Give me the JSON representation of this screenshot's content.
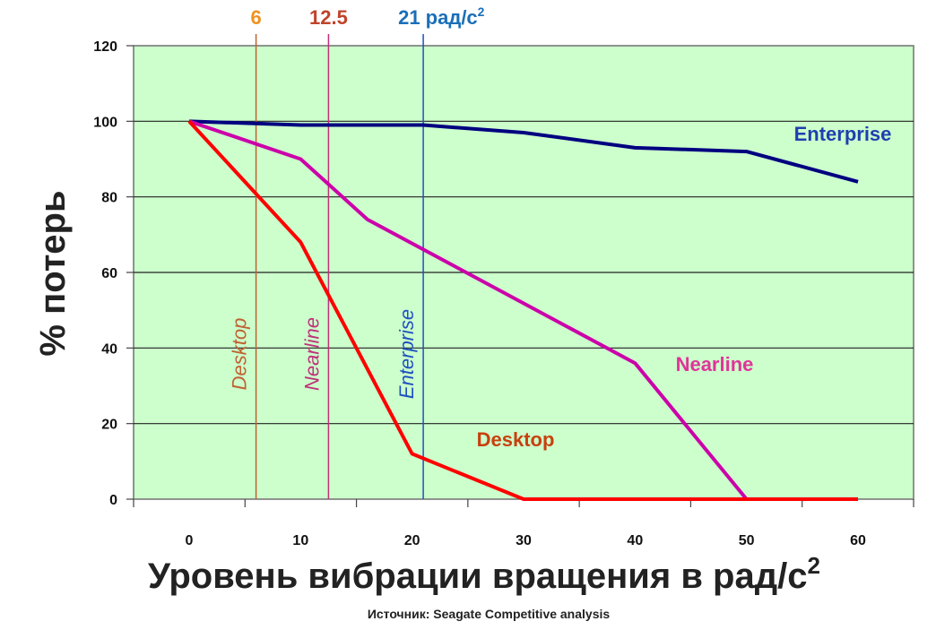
{
  "chart_data": {
    "type": "line",
    "title": "",
    "xlabel": "Уровень вибрации вращения в рад/с",
    "xlabel_superscript": "2",
    "ylabel": "% потерь",
    "source": "Источник: Seagate Competitive analysis",
    "ylim": [
      0,
      120
    ],
    "xlim": [
      0,
      60
    ],
    "y_ticks": [
      "0",
      "20",
      "40",
      "60",
      "80",
      "100",
      "120"
    ],
    "x_ticks": [
      "0",
      "10",
      "20",
      "30",
      "40",
      "50",
      "60"
    ],
    "grid": true,
    "background": "#ccffcc",
    "series": [
      {
        "name": "Enterprise",
        "color": "#000080",
        "label_color": "#1f3fb0",
        "x": [
          0,
          10,
          21,
          30,
          40,
          50,
          60
        ],
        "values": [
          100,
          99,
          99,
          97,
          93,
          92,
          84
        ]
      },
      {
        "name": "Nearline",
        "color": "#cc00aa",
        "label_color": "#e0349a",
        "x": [
          0,
          10,
          16,
          40,
          50,
          60
        ],
        "values": [
          100,
          90,
          74,
          36,
          0,
          0
        ]
      },
      {
        "name": "Desktop",
        "color": "#ff0000",
        "label_color": "#c8400e",
        "x": [
          0,
          10,
          20,
          30,
          40,
          50,
          60
        ],
        "values": [
          100,
          68,
          12,
          0,
          0,
          0,
          0
        ]
      }
    ],
    "thresholds": [
      {
        "value": 6,
        "top_label": "6",
        "line_label": "Desktop",
        "color": "#c06030",
        "top_color": "#f0921e"
      },
      {
        "value": 12.5,
        "top_label": "12.5",
        "line_label": "Nearline",
        "color": "#c0307a",
        "top_color": "#c0442a"
      },
      {
        "value": 21,
        "top_label": "21 рад/с",
        "top_superscript": "2",
        "line_label": "Enterprise",
        "color": "#2050c0",
        "top_color": "#1a6fb8"
      }
    ]
  }
}
